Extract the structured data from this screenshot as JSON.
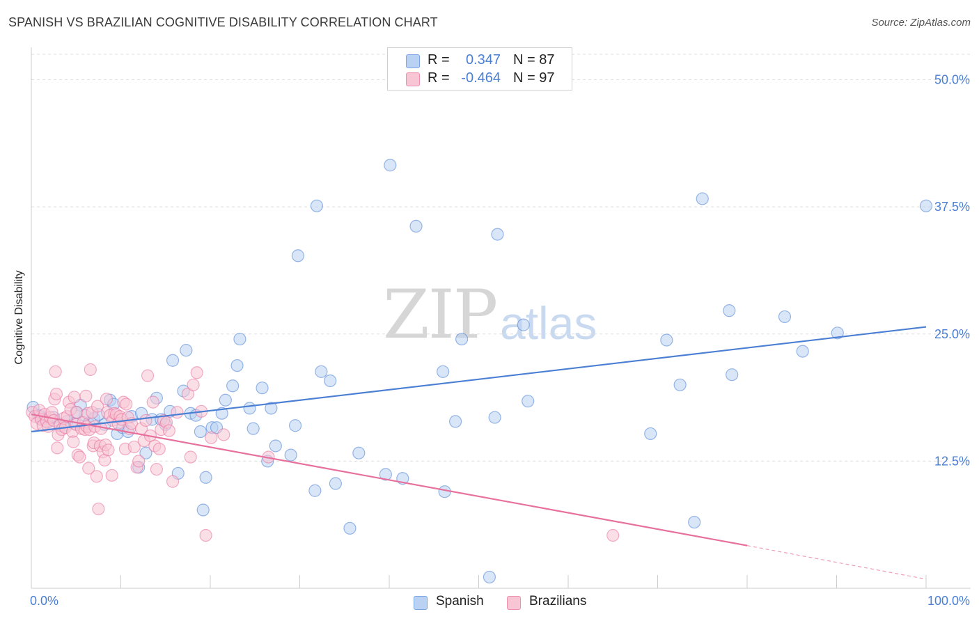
{
  "title": "SPANISH VS BRAZILIAN COGNITIVE DISABILITY CORRELATION CHART",
  "source": "Source: ZipAtlas.com",
  "watermark": {
    "zip": "ZIP",
    "atlas": "atlas"
  },
  "legend": {
    "r_label": "R =",
    "n_label": "N =",
    "rows": [
      {
        "r_value": "0.347",
        "n_text": "N = 87",
        "color": "#4a7fd4",
        "fill": "#b9d1f3",
        "edge": "#7aa6e6"
      },
      {
        "r_value": "-0.464",
        "n_text": "N = 97",
        "color": "#4a7fd4",
        "fill": "#f8c5d4",
        "edge": "#ee8faf"
      }
    ]
  },
  "bottom_legend": [
    {
      "label": "Spanish",
      "fill": "#b9d1f3",
      "edge": "#7aa6e6"
    },
    {
      "label": "Brazilians",
      "fill": "#f8c5d4",
      "edge": "#ee8faf"
    }
  ],
  "chart_data": {
    "type": "scatter",
    "title": "SPANISH VS BRAZILIAN COGNITIVE DISABILITY CORRELATION CHART",
    "xlabel": "",
    "ylabel": "Cognitive Disability",
    "xlim": [
      0,
      100
    ],
    "ylim": [
      0,
      52.5
    ],
    "x_ticks_labels": [
      "0.0%",
      "100.0%"
    ],
    "y_ticks": [
      12.5,
      25.0,
      37.5,
      50.0
    ],
    "y_tick_labels": [
      "12.5%",
      "25.0%",
      "37.5%",
      "50.0%"
    ],
    "grid": "horizontal dashed",
    "legend_position": "top-center",
    "series": [
      {
        "name": "Spanish",
        "color": "#4a7fd4",
        "fill": "#b9d1f3",
        "r": 0.347,
        "n": 87,
        "trend": {
          "x0": 0,
          "y0": 15.4,
          "x1": 100,
          "y1": 25.7
        },
        "points": [
          [
            0.2,
            17.8
          ],
          [
            0.8,
            17.0
          ],
          [
            1.2,
            16.6
          ],
          [
            1.8,
            16.3
          ],
          [
            2.5,
            16.8
          ],
          [
            3.2,
            16.1
          ],
          [
            4.0,
            16.4
          ],
          [
            4.8,
            16.2
          ],
          [
            5.5,
            18.0
          ],
          [
            6.0,
            17.0
          ],
          [
            6.4,
            16.2
          ],
          [
            7.0,
            16.7
          ],
          [
            7.5,
            17.1
          ],
          [
            8.2,
            16.1
          ],
          [
            8.8,
            18.5
          ],
          [
            9.2,
            18.1
          ],
          [
            9.6,
            15.2
          ],
          [
            10.2,
            15.8
          ],
          [
            10.8,
            15.4
          ],
          [
            11.2,
            16.9
          ],
          [
            12.0,
            11.9
          ],
          [
            12.3,
            17.2
          ],
          [
            12.8,
            13.3
          ],
          [
            13.5,
            16.6
          ],
          [
            14.0,
            18.7
          ],
          [
            14.5,
            16.6
          ],
          [
            15.0,
            16.1
          ],
          [
            15.5,
            17.4
          ],
          [
            15.8,
            22.4
          ],
          [
            16.4,
            11.3
          ],
          [
            17.0,
            19.4
          ],
          [
            17.3,
            23.4
          ],
          [
            17.8,
            17.2
          ],
          [
            18.4,
            17.0
          ],
          [
            18.9,
            15.4
          ],
          [
            19.2,
            7.7
          ],
          [
            19.5,
            10.9
          ],
          [
            20.2,
            15.8
          ],
          [
            20.7,
            15.8
          ],
          [
            21.3,
            17.2
          ],
          [
            21.7,
            18.5
          ],
          [
            22.5,
            19.9
          ],
          [
            23.0,
            21.9
          ],
          [
            23.3,
            24.5
          ],
          [
            24.4,
            17.7
          ],
          [
            24.8,
            15.7
          ],
          [
            25.8,
            19.7
          ],
          [
            26.4,
            12.5
          ],
          [
            26.8,
            17.7
          ],
          [
            27.3,
            14.0
          ],
          [
            29.0,
            13.1
          ],
          [
            29.5,
            16.0
          ],
          [
            29.8,
            32.7
          ],
          [
            31.7,
            9.6
          ],
          [
            31.9,
            37.6
          ],
          [
            32.4,
            21.3
          ],
          [
            33.4,
            20.4
          ],
          [
            34.0,
            10.3
          ],
          [
            35.6,
            5.9
          ],
          [
            36.6,
            13.3
          ],
          [
            39.6,
            11.2
          ],
          [
            40.1,
            41.6
          ],
          [
            41.5,
            10.8
          ],
          [
            43.0,
            35.6
          ],
          [
            46.0,
            21.3
          ],
          [
            46.2,
            9.5
          ],
          [
            47.4,
            16.4
          ],
          [
            48.1,
            24.5
          ],
          [
            51.2,
            1.1
          ],
          [
            51.8,
            16.8
          ],
          [
            52.1,
            34.8
          ],
          [
            55.0,
            25.9
          ],
          [
            55.5,
            18.4
          ],
          [
            69.2,
            15.2
          ],
          [
            71.0,
            24.4
          ],
          [
            72.5,
            20.0
          ],
          [
            74.1,
            6.5
          ],
          [
            75.0,
            38.3
          ],
          [
            78.0,
            27.3
          ],
          [
            78.3,
            21.0
          ],
          [
            84.2,
            26.7
          ],
          [
            86.2,
            23.3
          ],
          [
            90.1,
            25.1
          ],
          [
            100.0,
            37.6
          ],
          [
            1.0,
            16.9
          ],
          [
            3.6,
            15.9
          ],
          [
            5.0,
            17.3
          ]
        ]
      },
      {
        "name": "Brazilians",
        "color": "#e8709c",
        "fill": "#f8c5d4",
        "r": -0.464,
        "n": 97,
        "trend": {
          "x0": 0,
          "y0": 17.1,
          "x1": 80,
          "y1": 4.2
        },
        "trend_dashed": {
          "x0": 80,
          "y0": 4.2,
          "x1": 100,
          "y1": 0.9
        },
        "points": [
          [
            0.1,
            17.3
          ],
          [
            0.4,
            16.9
          ],
          [
            0.6,
            16.2
          ],
          [
            0.9,
            17.5
          ],
          [
            1.1,
            16.6
          ],
          [
            1.3,
            16.0
          ],
          [
            1.5,
            17.1
          ],
          [
            1.7,
            16.4
          ],
          [
            1.9,
            15.9
          ],
          [
            2.1,
            16.8
          ],
          [
            2.3,
            17.3
          ],
          [
            2.5,
            16.5
          ],
          [
            2.6,
            18.6
          ],
          [
            2.7,
            21.3
          ],
          [
            2.8,
            19.1
          ],
          [
            2.9,
            13.8
          ],
          [
            3.0,
            15.1
          ],
          [
            3.2,
            16.0
          ],
          [
            3.4,
            15.6
          ],
          [
            3.6,
            16.7
          ],
          [
            3.8,
            15.8
          ],
          [
            4.0,
            16.9
          ],
          [
            4.2,
            18.3
          ],
          [
            4.4,
            17.6
          ],
          [
            4.6,
            15.4
          ],
          [
            4.7,
            14.4
          ],
          [
            4.8,
            18.8
          ],
          [
            5.0,
            16.1
          ],
          [
            5.1,
            17.3
          ],
          [
            5.2,
            13.1
          ],
          [
            5.4,
            12.9
          ],
          [
            5.6,
            15.7
          ],
          [
            5.8,
            16.3
          ],
          [
            6.0,
            15.6
          ],
          [
            6.1,
            18.9
          ],
          [
            6.2,
            15.9
          ],
          [
            6.3,
            17.2
          ],
          [
            6.4,
            11.8
          ],
          [
            6.5,
            15.6
          ],
          [
            6.6,
            21.5
          ],
          [
            6.8,
            17.3
          ],
          [
            6.9,
            14.0
          ],
          [
            7.0,
            14.3
          ],
          [
            7.1,
            15.9
          ],
          [
            7.3,
            11.0
          ],
          [
            7.4,
            17.9
          ],
          [
            7.5,
            7.8
          ],
          [
            7.7,
            14.0
          ],
          [
            7.8,
            15.7
          ],
          [
            8.0,
            13.4
          ],
          [
            8.2,
            12.6
          ],
          [
            8.3,
            14.1
          ],
          [
            8.4,
            18.6
          ],
          [
            8.5,
            17.3
          ],
          [
            8.6,
            13.6
          ],
          [
            8.8,
            17.0
          ],
          [
            9.0,
            11.1
          ],
          [
            9.1,
            16.5
          ],
          [
            9.3,
            17.2
          ],
          [
            9.5,
            17.1
          ],
          [
            9.7,
            16.2
          ],
          [
            9.9,
            16.9
          ],
          [
            10.1,
            16.6
          ],
          [
            10.3,
            18.3
          ],
          [
            10.5,
            13.7
          ],
          [
            10.6,
            18.1
          ],
          [
            10.8,
            16.8
          ],
          [
            11.0,
            15.7
          ],
          [
            11.2,
            16.2
          ],
          [
            11.5,
            13.9
          ],
          [
            11.8,
            11.9
          ],
          [
            12.0,
            12.5
          ],
          [
            12.3,
            15.7
          ],
          [
            12.6,
            14.5
          ],
          [
            12.8,
            16.5
          ],
          [
            13.0,
            20.9
          ],
          [
            13.3,
            15.0
          ],
          [
            13.6,
            18.3
          ],
          [
            13.8,
            14.0
          ],
          [
            14.0,
            11.7
          ],
          [
            14.3,
            13.7
          ],
          [
            14.5,
            15.6
          ],
          [
            14.8,
            16.5
          ],
          [
            15.1,
            16.3
          ],
          [
            15.4,
            15.5
          ],
          [
            15.8,
            10.5
          ],
          [
            16.3,
            17.3
          ],
          [
            17.5,
            19.1
          ],
          [
            17.8,
            12.9
          ],
          [
            18.1,
            20.0
          ],
          [
            18.5,
            21.2
          ],
          [
            19.0,
            17.4
          ],
          [
            19.5,
            5.2
          ],
          [
            20.1,
            14.8
          ],
          [
            21.5,
            15.1
          ],
          [
            26.5,
            12.9
          ],
          [
            65.0,
            5.2
          ]
        ]
      }
    ]
  }
}
